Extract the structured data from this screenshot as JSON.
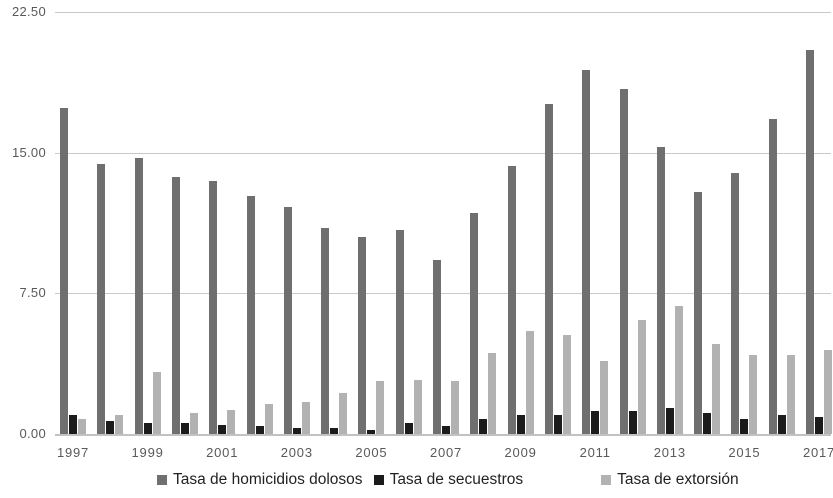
{
  "chart_data": {
    "type": "bar",
    "title": "",
    "categories": [
      "1997",
      "1998",
      "1999",
      "2000",
      "2001",
      "2002",
      "2003",
      "2004",
      "2005",
      "2006",
      "2007",
      "2008",
      "2009",
      "2010",
      "2011",
      "2012",
      "2013",
      "2014",
      "2015",
      "2016",
      "2017"
    ],
    "series": [
      {
        "name": "Tasa de homicidios dolosos",
        "color": "#6f6f6f",
        "values": [
          17.4,
          14.4,
          14.7,
          13.7,
          13.5,
          12.7,
          12.1,
          11.0,
          10.5,
          10.9,
          9.3,
          11.8,
          14.3,
          17.6,
          19.4,
          18.4,
          15.3,
          12.9,
          13.9,
          16.8,
          20.5
        ]
      },
      {
        "name": "Tasa de secuestros",
        "color": "#1b1b1b",
        "values": [
          1.0,
          0.7,
          0.6,
          0.6,
          0.5,
          0.4,
          0.3,
          0.3,
          0.2,
          0.6,
          0.4,
          0.8,
          1.0,
          1.0,
          1.2,
          1.2,
          1.4,
          1.1,
          0.8,
          1.0,
          0.9
        ]
      },
      {
        "name": "Tasa de extorsión",
        "color": "#b2b2b2",
        "values": [
          0.8,
          1.0,
          3.3,
          1.1,
          1.3,
          1.6,
          1.7,
          2.2,
          2.8,
          2.9,
          2.8,
          4.3,
          5.5,
          5.3,
          3.9,
          6.1,
          6.8,
          4.8,
          4.2,
          4.2,
          4.5
        ]
      }
    ],
    "y_axis": {
      "min": 0,
      "max": 22.5,
      "tick_values": [
        0,
        7.5,
        15,
        22.5
      ],
      "tick_labels": [
        "0.00",
        "7.50",
        "15.00",
        "22.50"
      ]
    },
    "x_axis": {
      "visible_tick_labels": [
        "1997",
        "1999",
        "2001",
        "2003",
        "2005",
        "2007",
        "2009",
        "2011",
        "2013",
        "2015",
        "2017"
      ],
      "label_every_n_years": 2
    },
    "grid": true,
    "legend_position": "bottom",
    "colors": {
      "gridline": "#c9c9c9",
      "axis_text": "#595959",
      "legend_text": "#222222",
      "background": "#ffffff"
    }
  }
}
